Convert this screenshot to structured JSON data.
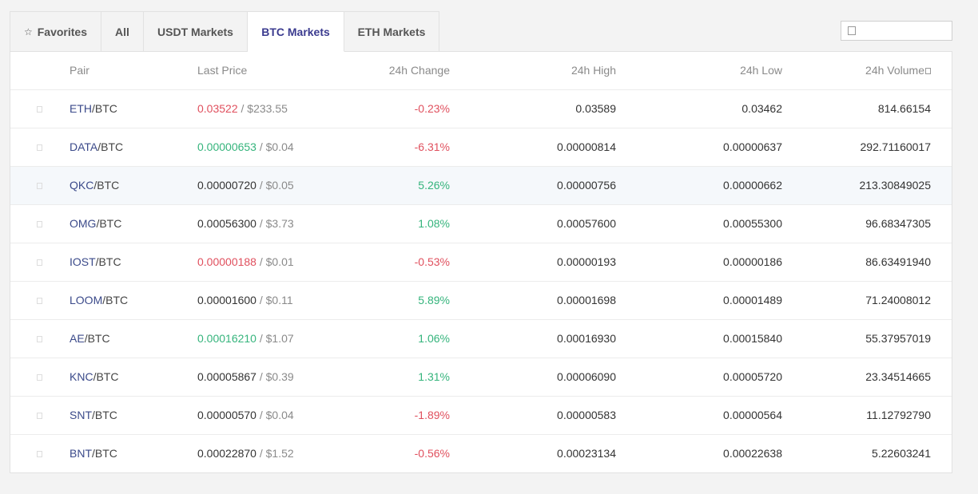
{
  "tabs": [
    {
      "label": "Favorites",
      "active": false
    },
    {
      "label": "All",
      "active": false
    },
    {
      "label": "USDT Markets",
      "active": false
    },
    {
      "label": "BTC Markets",
      "active": true
    },
    {
      "label": "ETH Markets",
      "active": false
    }
  ],
  "search": {
    "placeholder": "",
    "value": ""
  },
  "columns": {
    "pair": "Pair",
    "last_price": "Last Price",
    "change": "24h Change",
    "high": "24h High",
    "low": "24h Low",
    "volume": "24h Volume"
  },
  "colors": {
    "up": "#35b47c",
    "down": "#e0505e",
    "accent": "#3b3b8f"
  },
  "rows": [
    {
      "base": "ETH",
      "quote": "/BTC",
      "price": "0.03522",
      "price_trend": "down",
      "usd": " / $233.55",
      "change": "-0.23%",
      "change_trend": "down",
      "high": "0.03589",
      "low": "0.03462",
      "volume": "814.66154"
    },
    {
      "base": "DATA",
      "quote": "/BTC",
      "price": "0.00000653",
      "price_trend": "up",
      "usd": " / $0.04",
      "change": "-6.31%",
      "change_trend": "down",
      "high": "0.00000814",
      "low": "0.00000637",
      "volume": "292.71160017"
    },
    {
      "base": "QKC",
      "quote": "/BTC",
      "price": "0.00000720",
      "price_trend": "neutral",
      "usd": " / $0.05",
      "change": "5.26%",
      "change_trend": "up",
      "high": "0.00000756",
      "low": "0.00000662",
      "volume": "213.30849025",
      "highlight": true
    },
    {
      "base": "OMG",
      "quote": "/BTC",
      "price": "0.00056300",
      "price_trend": "neutral",
      "usd": " / $3.73",
      "change": "1.08%",
      "change_trend": "up",
      "high": "0.00057600",
      "low": "0.00055300",
      "volume": "96.68347305"
    },
    {
      "base": "IOST",
      "quote": "/BTC",
      "price": "0.00000188",
      "price_trend": "down",
      "usd": " / $0.01",
      "change": "-0.53%",
      "change_trend": "down",
      "high": "0.00000193",
      "low": "0.00000186",
      "volume": "86.63491940"
    },
    {
      "base": "LOOM",
      "quote": "/BTC",
      "price": "0.00001600",
      "price_trend": "neutral",
      "usd": " / $0.11",
      "change": "5.89%",
      "change_trend": "up",
      "high": "0.00001698",
      "low": "0.00001489",
      "volume": "71.24008012"
    },
    {
      "base": "AE",
      "quote": "/BTC",
      "price": "0.00016210",
      "price_trend": "up",
      "usd": " / $1.07",
      "change": "1.06%",
      "change_trend": "up",
      "high": "0.00016930",
      "low": "0.00015840",
      "volume": "55.37957019"
    },
    {
      "base": "KNC",
      "quote": "/BTC",
      "price": "0.00005867",
      "price_trend": "neutral",
      "usd": " / $0.39",
      "change": "1.31%",
      "change_trend": "up",
      "high": "0.00006090",
      "low": "0.00005720",
      "volume": "23.34514665"
    },
    {
      "base": "SNT",
      "quote": "/BTC",
      "price": "0.00000570",
      "price_trend": "neutral",
      "usd": " / $0.04",
      "change": "-1.89%",
      "change_trend": "down",
      "high": "0.00000583",
      "low": "0.00000564",
      "volume": "11.12792790"
    },
    {
      "base": "BNT",
      "quote": "/BTC",
      "price": "0.00022870",
      "price_trend": "neutral",
      "usd": " / $1.52",
      "change": "-0.56%",
      "change_trend": "down",
      "high": "0.00023134",
      "low": "0.00022638",
      "volume": "5.22603241"
    }
  ]
}
